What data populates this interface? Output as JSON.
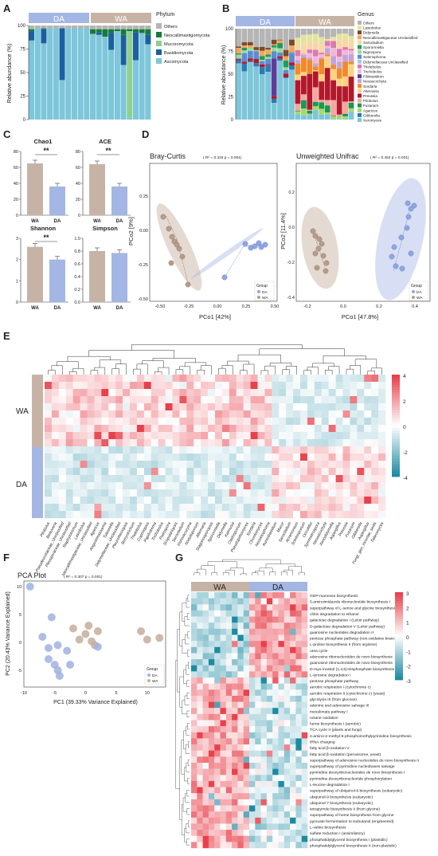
{
  "panels": {
    "A": "A",
    "B": "B",
    "C": "C",
    "D": "D",
    "E": "E",
    "F": "F",
    "G": "G"
  },
  "colors": {
    "DA": "#a3b6e4",
    "WA": "#c7b3a5",
    "heat_hi": "#e8414b",
    "heat_mid": "#ffffff",
    "heat_lo": "#1d8aa3"
  },
  "panelA": {
    "groups": [
      "DA",
      "WA"
    ],
    "ylabel": "Relative abundance (%)",
    "yticks": [
      "0",
      "25",
      "50",
      "75",
      "100"
    ],
    "legend_title": "Phylum",
    "legend": [
      {
        "name": "Others",
        "color": "#b5b5b5"
      },
      {
        "name": "Neocallimastigomycota",
        "color": "#167a3a"
      },
      {
        "name": "Mucoromycota",
        "color": "#8fd08f"
      },
      {
        "name": "Basidiomycota",
        "color": "#1b5f9e"
      },
      {
        "name": "Ascomycota",
        "color": "#7ec6da"
      }
    ]
  },
  "panelB": {
    "groups": [
      "DA",
      "WA"
    ],
    "ylabel": "Relative abundance (%)",
    "yticks": [
      "0",
      "25",
      "50",
      "75",
      "100"
    ],
    "legend_title": "Genus",
    "legend": [
      {
        "name": "Others",
        "color": "#b5b5b5"
      },
      {
        "name": "Lasiobolus",
        "color": "#e3e3a0"
      },
      {
        "name": "Didymella",
        "color": "#7a4b2a"
      },
      {
        "name": "Neocallimastigaceae Unclassified",
        "color": "#f5a55c"
      },
      {
        "name": "Sarocladium",
        "color": "#f9d5a7"
      },
      {
        "name": "Sporormiella",
        "color": "#1a9e5a"
      },
      {
        "name": "Nigrospora",
        "color": "#9fd99f"
      },
      {
        "name": "Selenophoma",
        "color": "#5b8ccf"
      },
      {
        "name": "Didymellaceae Unclassified",
        "color": "#a4c8ec"
      },
      {
        "name": "Thelebolus",
        "color": "#d97ab0"
      },
      {
        "name": "Trichobolus",
        "color": "#f2b8d8"
      },
      {
        "name": "Filobasidium",
        "color": "#5e3c99"
      },
      {
        "name": "Neoascochyta",
        "color": "#c2a5d8"
      },
      {
        "name": "Sordaria",
        "color": "#f08a2a"
      },
      {
        "name": "Alternaria",
        "color": "#ffd27f"
      },
      {
        "name": "Preussia",
        "color": "#b2182b"
      },
      {
        "name": "Pilobolus",
        "color": "#f6a6a0"
      },
      {
        "name": "Fusarium",
        "color": "#1a9850"
      },
      {
        "name": "Agaricus",
        "color": "#a6d96a"
      },
      {
        "name": "Gibberella",
        "color": "#2c7bb6"
      },
      {
        "name": "Xeromyces",
        "color": "#7ec6da"
      }
    ]
  },
  "panelC": {
    "charts": [
      {
        "title": "Chao1",
        "sig": "**",
        "yticks": [
          "0",
          "20",
          "40",
          "60",
          "80"
        ],
        "cats": [
          "WA",
          "DA"
        ],
        "values": [
          65,
          36
        ]
      },
      {
        "title": "ACE",
        "sig": "**",
        "yticks": [
          "0",
          "20",
          "40",
          "60",
          "80"
        ],
        "cats": [
          "WA",
          "DA"
        ],
        "values": [
          64,
          36
        ]
      },
      {
        "title": "Shannon",
        "sig": "**",
        "yticks": [
          "0",
          "1",
          "2",
          "3"
        ],
        "cats": [
          "WA",
          "DA"
        ],
        "values": [
          2.6,
          2.0
        ]
      },
      {
        "title": "Simpson",
        "sig": "",
        "yticks": [
          "0.0",
          "0.2",
          "0.4",
          "0.6",
          "0.8",
          "1.0"
        ],
        "cats": [
          "WA",
          "DA"
        ],
        "values": [
          0.8,
          0.77
        ]
      }
    ]
  },
  "panelD": {
    "left": {
      "title": "Bray-Curtis",
      "stat": "( R² = 0.315 p = 0.001)",
      "xlabel": "PCo1 [42%]",
      "ylabel": "PCo2 [9%]",
      "xticks": [
        "-0.50",
        "-0.25",
        "0.00",
        "0.25",
        "0.50"
      ],
      "yticks": [
        "0.25",
        "0.00",
        "-0.25",
        "-0.50"
      ]
    },
    "right": {
      "title": "Unweighted Unifrac",
      "stat": "( R² = 0.462 p = 0.001)",
      "xlabel": "PCo1 [47.8%]",
      "ylabel": "PCo2 [11.4%]",
      "xticks": [
        "-0.2",
        "0.0",
        "0.2",
        "0.4"
      ],
      "yticks": [
        "0.2",
        "0.0",
        "-0.2",
        "-0.4"
      ]
    },
    "legend_title": "Group",
    "legend": [
      "DA",
      "WA"
    ]
  },
  "panelE": {
    "groups": [
      "WA",
      "DA"
    ],
    "scale": [
      "4",
      "2",
      "0",
      "-2",
      "-4"
    ],
    "taxa": [
      "Pilobolus",
      "Beauveria",
      "Pseudeurotiaceae_Unclassified",
      "Pleosporaceae_Unclassified",
      "Staphylotrichum",
      "Lasiobolus",
      "Neocallimastigaceae_Unclassified",
      "Agaricus",
      "Angustimassarina",
      "Tulasnella",
      "Didymellaceae_Unclassified",
      "Pleurotheciopsis",
      "Botryotrichum",
      "Thelebolus",
      "Coprinopsis",
      "Papiliotrema",
      "Trichobolus",
      "Podospora",
      "Scopulariopsis",
      "Sarocladium",
      "Vishniacozyma",
      "Nodulisporium",
      "Alternaria",
      "Stagonosporopsis",
      "Sporormiella",
      "Didymella",
      "Kalmusia",
      "Cladosporium",
      "Pseudopithomyces",
      "Sordaria",
      "Chordomyces",
      "Neosetophoma",
      "Aureobasidium",
      "Mucor",
      "Sarocladium",
      "Acremonium",
      "Scedosporium",
      "Occultifur",
      "Symmetrospora",
      "Neoascochyta",
      "Xenodidymella",
      "Aspergillus",
      "Preussia",
      "Fusarium",
      "Gibberella",
      "Aspergillus",
      "Fungi_gen_Incertae_sedis",
      "Talaromyces"
    ]
  },
  "panelF": {
    "title": "PCA Plot",
    "stat": "( R² = 0.307 p = 0.001)",
    "xlabel": "PC1 (39.33% Variance Explained)",
    "ylabel": "PC2 (20.43% Variance Explained)",
    "xticks": [
      "-10",
      "-5",
      "0",
      "5",
      "10"
    ],
    "yticks": [
      "10",
      "5",
      "0",
      "-5"
    ],
    "legend_title": "Group",
    "legend": [
      "DA",
      "WA"
    ]
  },
  "panelG": {
    "groups": [
      "WA",
      "DA"
    ],
    "scale": [
      "3",
      "2",
      "1",
      "0",
      "-1",
      "-2",
      "-3"
    ],
    "pathways": [
      "GDP-mannose biosynthesis",
      "5-aminoimidazole ribonucleotide biosynthesis I",
      "superpathway of L-serine and glycine biosynthesis I",
      "chitin degradation to ethanol",
      "galactose degradation I (Leloir pathway)",
      "D-galactose degradation V (Leloir pathway)",
      "guanosine nucleotides degradation II",
      "pentose phosphate pathway (non-oxidative branch)",
      "L-proline biosynthesis II (from arginine)",
      "urea cycle",
      "adenosine ribonucleotides de novo biosynthesis",
      "guanosine ribonucleotides de novo biosynthesis",
      "D-myo-inositol (1,4,5)-trisphosphate biosynthesis",
      "L-tyrosine degradation I",
      "pentose phosphate pathway",
      "aerobic respiration I (cytochrome c)",
      "aerobic respiration II (cytochrome c) (yeast)",
      "glycolysis III (from glucose)",
      "adenine and adenosine salvage III",
      "mevalonate pathway I",
      "octane oxidation",
      "heme biosynthesis I (aerobic)",
      "TCA cycle II (plants and fungi)",
      "4-amino-2-methyl-5-phosphomethylpyrimidine biosynthesis",
      "tRNA charging",
      "fatty acid &beta;-oxidation V",
      "fatty acid &beta;-oxidation (peroxisome, yeast)",
      "superpathway of adenosine nucleotides de novo biosynthesis II",
      "superpathway of pyrimidine nucleobases salvage",
      "pyrimidine deoxyribonucleotides de novo biosynthesis I",
      "pyrimidine deoxyribonucleotide phosphorylation",
      "L-leucine degradation I",
      "superpathway of ubiquinol-6 biosynthesis (eukaryotic)",
      "ubiquinol-9 biosynthesis (eukaryotic)",
      "ubiquinol-7 biosynthesis (eukaryotic)",
      "tetrapyrrole biosynthesis II (from glycine)",
      "superpathway of heme biosynthesis from glycine",
      "pyruvate fermentation to isobutanol (engineered)",
      "L-valine biosynthesis",
      "sulfate reduction I (assimilatory)",
      "phosphatidylglycerol biosynthesis I (plastidic)",
      "phosphatidylglycerol biosynthesis II (non-plastidic)"
    ]
  }
}
